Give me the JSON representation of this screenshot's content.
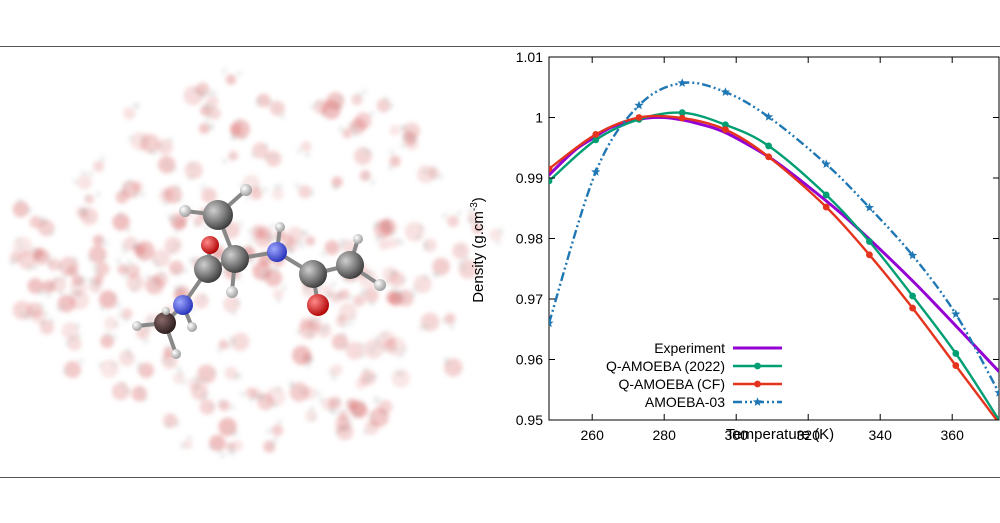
{
  "molecule_image": {
    "description_icon": "solvated-molecule-icon"
  },
  "chart_data": {
    "type": "line",
    "title": "",
    "xlabel": "Temperature (K)",
    "ylabel_main": "Density (g.cm",
    "ylabel_sup": "-3",
    "ylabel_close": ")",
    "xlim": [
      248,
      373
    ],
    "ylim": [
      0.95,
      1.01
    ],
    "xticks": [
      260,
      280,
      300,
      320,
      340,
      360
    ],
    "yticks": [
      0.95,
      0.96,
      0.97,
      0.98,
      0.99,
      1,
      1.01
    ],
    "ytick_labels": [
      "0.95",
      "0.96",
      "0.97",
      "0.98",
      "0.99",
      "1",
      "1.01"
    ],
    "grid": false,
    "legend_position": "bottom-left",
    "series": [
      {
        "name": "Experiment",
        "color": "#9400d3",
        "marker": "none",
        "dash": "solid",
        "x": [
          248,
          255,
          260,
          265,
          270,
          275,
          280,
          285,
          290,
          295,
          300,
          310,
          320,
          330,
          340,
          350,
          360,
          373
        ],
        "y": [
          0.9905,
          0.9945,
          0.9965,
          0.9983,
          0.9993,
          0.9999,
          1.0,
          0.9996,
          0.9989,
          0.998,
          0.9966,
          0.9931,
          0.9886,
          0.9837,
          0.9782,
          0.9724,
          0.9662,
          0.958
        ]
      },
      {
        "name": "Q-AMOEBA (2022)",
        "color": "#009e73",
        "marker": "circle",
        "dash": "solid",
        "x": [
          248,
          261,
          273,
          285,
          297,
          309,
          325,
          337,
          349,
          361,
          373
        ],
        "y": [
          0.9895,
          0.9963,
          0.9997,
          1.0008,
          0.9988,
          0.9953,
          0.9872,
          0.9795,
          0.9705,
          0.961,
          0.95
        ]
      },
      {
        "name": "Q-AMOEBA (CF)",
        "color": "#e5341d",
        "marker": "circle",
        "dash": "solid",
        "x": [
          248,
          261,
          273,
          285,
          297,
          309,
          325,
          337,
          349,
          361,
          373
        ],
        "y": [
          0.9915,
          0.9972,
          1.0,
          0.9999,
          0.998,
          0.9935,
          0.9852,
          0.9773,
          0.9685,
          0.959,
          0.9495
        ]
      },
      {
        "name": "AMOEBA-03",
        "color": "#1f77b4",
        "marker": "star",
        "dash": "dashdot",
        "x": [
          248,
          261,
          273,
          285,
          297,
          309,
          325,
          337,
          349,
          361,
          373
        ],
        "y": [
          0.966,
          0.991,
          1.002,
          1.0057,
          1.0042,
          1.0001,
          0.9923,
          0.9851,
          0.9772,
          0.9675,
          0.9545
        ]
      }
    ]
  }
}
